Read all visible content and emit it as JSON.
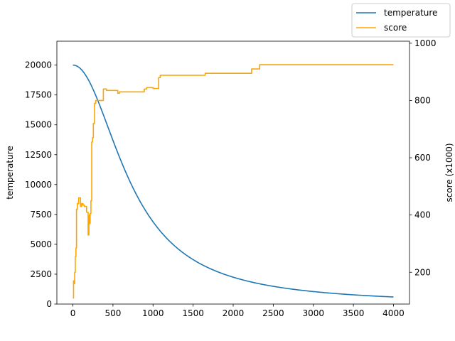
{
  "chart_data": {
    "type": "line",
    "title": "",
    "xlabel": "",
    "ylabel_left": "temperature",
    "ylabel_right": "score (x1000)",
    "xlim": [
      -200,
      4200
    ],
    "ylim_left": [
      0,
      22000
    ],
    "ylim_right": [
      89,
      1007
    ],
    "x_ticks": [
      0,
      500,
      1000,
      1500,
      2000,
      2500,
      3000,
      3500,
      4000
    ],
    "y_left_ticks": [
      0,
      2500,
      5000,
      7500,
      10000,
      12500,
      15000,
      17500,
      20000
    ],
    "y_right_ticks": [
      200,
      400,
      600,
      800,
      1000
    ],
    "grid": false,
    "legend": {
      "position": "top-right",
      "entries": [
        "temperature",
        "score"
      ]
    },
    "colors": {
      "temperature": "#1f77b4",
      "score": "#ffa500"
    },
    "series": [
      {
        "name": "temperature",
        "axis": "left",
        "curve": {
          "form": "T0/(1+(x/x50)^p)",
          "T0": 20000,
          "x50": 730,
          "p": 2.05,
          "x_start": 0,
          "x_end": 4000
        }
      },
      {
        "name": "score",
        "axis": "right",
        "step": true,
        "points": [
          [
            0,
            110
          ],
          [
            8,
            170
          ],
          [
            15,
            160
          ],
          [
            22,
            200
          ],
          [
            30,
            255
          ],
          [
            38,
            285
          ],
          [
            45,
            420
          ],
          [
            55,
            440
          ],
          [
            65,
            440
          ],
          [
            72,
            460
          ],
          [
            85,
            460
          ],
          [
            95,
            430
          ],
          [
            110,
            440
          ],
          [
            125,
            435
          ],
          [
            140,
            430
          ],
          [
            160,
            430
          ],
          [
            170,
            410
          ],
          [
            185,
            410
          ],
          [
            190,
            330
          ],
          [
            200,
            400
          ],
          [
            210,
            370
          ],
          [
            215,
            405
          ],
          [
            225,
            450
          ],
          [
            235,
            655
          ],
          [
            245,
            670
          ],
          [
            255,
            720
          ],
          [
            270,
            790
          ],
          [
            285,
            800
          ],
          [
            300,
            800
          ],
          [
            340,
            800
          ],
          [
            380,
            840
          ],
          [
            400,
            840
          ],
          [
            420,
            835
          ],
          [
            540,
            835
          ],
          [
            560,
            825
          ],
          [
            580,
            830
          ],
          [
            880,
            830
          ],
          [
            890,
            840
          ],
          [
            920,
            845
          ],
          [
            990,
            845
          ],
          [
            1000,
            842
          ],
          [
            1060,
            842
          ],
          [
            1070,
            880
          ],
          [
            1090,
            888
          ],
          [
            1100,
            888
          ],
          [
            1640,
            888
          ],
          [
            1650,
            895
          ],
          [
            2220,
            895
          ],
          [
            2230,
            910
          ],
          [
            2320,
            910
          ],
          [
            2330,
            925
          ],
          [
            4000,
            925
          ]
        ]
      }
    ]
  }
}
